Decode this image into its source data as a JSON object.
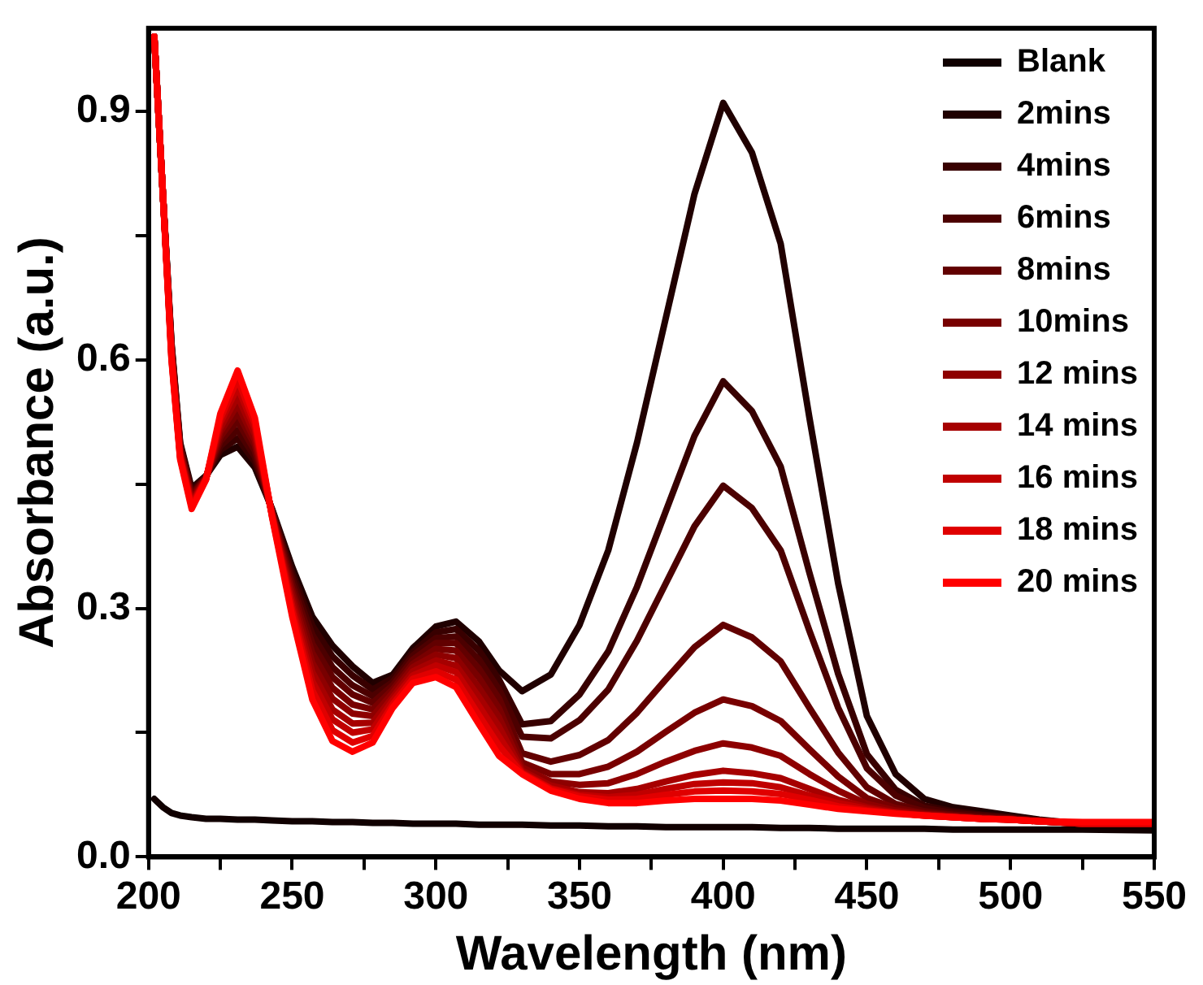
{
  "chart_data": {
    "type": "line",
    "xlabel": "Wavelength (nm)",
    "ylabel": "Absorbance (a.u.)",
    "x": [
      202,
      205,
      208,
      211,
      215,
      220,
      225,
      231,
      237,
      243,
      250,
      257,
      264,
      271,
      278,
      285,
      292,
      300,
      307,
      315,
      322,
      330,
      340,
      350,
      360,
      370,
      380,
      390,
      400,
      410,
      420,
      430,
      440,
      450,
      460,
      470,
      480,
      490,
      500,
      510,
      525,
      550
    ],
    "xlim": [
      200,
      550
    ],
    "xticks": [
      200,
      {
        "value": 225,
        "label": null
      },
      250,
      {
        "value": 275,
        "label": null
      },
      300,
      {
        "value": 325,
        "label": null
      },
      350,
      {
        "value": 375,
        "label": null
      },
      400,
      {
        "value": 425,
        "label": null
      },
      450,
      {
        "value": 475,
        "label": null
      },
      500,
      {
        "value": 525,
        "label": null
      },
      550
    ],
    "ylim": [
      0,
      1.0
    ],
    "yticks": [
      {
        "value": 0,
        "label": "0.0"
      },
      {
        "value": 0.15,
        "label": null
      },
      {
        "value": 0.3,
        "label": "0.3"
      },
      {
        "value": 0.45,
        "label": null
      },
      {
        "value": 0.6,
        "label": "0.6"
      },
      {
        "value": 0.75,
        "label": null
      },
      {
        "value": 0.9,
        "label": "0.9"
      }
    ],
    "grid": false,
    "legend": "top right",
    "marker": "none",
    "line_style": "solid",
    "series": [
      {
        "name": "Blank",
        "color": "#100000",
        "values": [
          0.07,
          0.06,
          0.053,
          0.05,
          0.048,
          0.046,
          0.046,
          0.045,
          0.045,
          0.044,
          0.043,
          0.043,
          0.042,
          0.042,
          0.041,
          0.041,
          0.04,
          0.04,
          0.04,
          0.039,
          0.039,
          0.039,
          0.038,
          0.038,
          0.037,
          0.037,
          0.036,
          0.036,
          0.036,
          0.036,
          0.035,
          0.035,
          0.034,
          0.034,
          0.034,
          0.034,
          0.033,
          0.033,
          0.033,
          0.033,
          0.033,
          0.032
        ]
      },
      {
        "name": "2mins",
        "color": "#200000",
        "values": [
          0.99,
          0.8,
          0.62,
          0.5,
          0.445,
          0.46,
          0.485,
          0.495,
          0.47,
          0.42,
          0.35,
          0.29,
          0.255,
          0.23,
          0.21,
          0.22,
          0.252,
          0.278,
          0.284,
          0.26,
          0.225,
          0.2,
          0.22,
          0.28,
          0.37,
          0.5,
          0.65,
          0.8,
          0.91,
          0.85,
          0.74,
          0.53,
          0.33,
          0.17,
          0.1,
          0.07,
          0.06,
          0.055,
          0.05,
          0.045,
          0.04,
          0.04
        ]
      },
      {
        "name": "4mins",
        "color": "#380000",
        "values": [
          0.99,
          0.8,
          0.618,
          0.498,
          0.442,
          0.459,
          0.491,
          0.505,
          0.477,
          0.419,
          0.343,
          0.279,
          0.242,
          0.219,
          0.202,
          0.216,
          0.247,
          0.271,
          0.275,
          0.249,
          0.214,
          0.16,
          0.164,
          0.196,
          0.248,
          0.326,
          0.417,
          0.508,
          0.574,
          0.538,
          0.471,
          0.343,
          0.221,
          0.124,
          0.081,
          0.062,
          0.055,
          0.051,
          0.048,
          0.044,
          0.04,
          0.04
        ]
      },
      {
        "name": "6mins",
        "color": "#4c0000",
        "values": [
          0.99,
          0.8,
          0.616,
          0.496,
          0.439,
          0.459,
          0.496,
          0.515,
          0.483,
          0.418,
          0.337,
          0.268,
          0.229,
          0.207,
          0.194,
          0.211,
          0.243,
          0.264,
          0.266,
          0.238,
          0.202,
          0.145,
          0.143,
          0.165,
          0.202,
          0.261,
          0.33,
          0.399,
          0.448,
          0.421,
          0.37,
          0.273,
          0.18,
          0.107,
          0.074,
          0.059,
          0.053,
          0.05,
          0.047,
          0.044,
          0.04,
          0.04
        ]
      },
      {
        "name": "8mins",
        "color": "#620000",
        "values": [
          0.99,
          0.8,
          0.613,
          0.493,
          0.437,
          0.458,
          0.502,
          0.526,
          0.49,
          0.417,
          0.33,
          0.257,
          0.217,
          0.196,
          0.186,
          0.207,
          0.238,
          0.258,
          0.258,
          0.227,
          0.191,
          0.125,
          0.115,
          0.123,
          0.141,
          0.174,
          0.214,
          0.253,
          0.28,
          0.265,
          0.236,
          0.18,
          0.126,
          0.084,
          0.064,
          0.055,
          0.051,
          0.048,
          0.046,
          0.044,
          0.04,
          0.04
        ]
      },
      {
        "name": "10mins",
        "color": "#780000",
        "values": [
          0.99,
          0.8,
          0.611,
          0.491,
          0.434,
          0.458,
          0.507,
          0.536,
          0.497,
          0.416,
          0.323,
          0.246,
          0.204,
          0.184,
          0.178,
          0.202,
          0.233,
          0.251,
          0.249,
          0.216,
          0.179,
          0.114,
          0.1,
          0.1,
          0.109,
          0.127,
          0.151,
          0.174,
          0.19,
          0.182,
          0.164,
          0.13,
          0.097,
          0.071,
          0.059,
          0.053,
          0.05,
          0.047,
          0.046,
          0.043,
          0.04,
          0.04
        ]
      },
      {
        "name": "12 mins",
        "color": "#8e0000",
        "values": [
          0.99,
          0.8,
          0.609,
          0.489,
          0.431,
          0.457,
          0.513,
          0.546,
          0.503,
          0.414,
          0.317,
          0.234,
          0.191,
          0.173,
          0.17,
          0.198,
          0.229,
          0.244,
          0.24,
          0.204,
          0.168,
          0.108,
          0.091,
          0.087,
          0.089,
          0.1,
          0.115,
          0.128,
          0.137,
          0.132,
          0.122,
          0.1,
          0.08,
          0.064,
          0.056,
          0.052,
          0.049,
          0.047,
          0.045,
          0.043,
          0.04,
          0.04
        ]
      },
      {
        "name": "14 mins",
        "color": "#a60000",
        "values": [
          0.99,
          0.8,
          0.607,
          0.487,
          0.428,
          0.457,
          0.518,
          0.556,
          0.51,
          0.413,
          0.31,
          0.223,
          0.178,
          0.161,
          0.162,
          0.193,
          0.224,
          0.237,
          0.231,
          0.193,
          0.157,
          0.104,
          0.086,
          0.078,
          0.077,
          0.082,
          0.091,
          0.099,
          0.104,
          0.101,
          0.095,
          0.082,
          0.069,
          0.06,
          0.054,
          0.051,
          0.048,
          0.046,
          0.045,
          0.043,
          0.04,
          0.04
        ]
      },
      {
        "name": "16 mins",
        "color": "#c00000",
        "values": [
          0.99,
          0.8,
          0.604,
          0.484,
          0.426,
          0.456,
          0.524,
          0.567,
          0.517,
          0.412,
          0.303,
          0.212,
          0.166,
          0.15,
          0.154,
          0.189,
          0.219,
          0.231,
          0.223,
          0.182,
          0.145,
          0.102,
          0.083,
          0.075,
          0.072,
          0.075,
          0.082,
          0.088,
          0.09,
          0.089,
          0.084,
          0.074,
          0.065,
          0.058,
          0.053,
          0.05,
          0.048,
          0.046,
          0.045,
          0.043,
          0.04,
          0.04
        ]
      },
      {
        "name": "18 mins",
        "color": "#e00000",
        "values": [
          0.99,
          0.8,
          0.602,
          0.482,
          0.423,
          0.456,
          0.529,
          0.577,
          0.523,
          0.411,
          0.297,
          0.201,
          0.153,
          0.138,
          0.146,
          0.184,
          0.215,
          0.224,
          0.214,
          0.171,
          0.134,
          0.101,
          0.082,
          0.073,
          0.069,
          0.07,
          0.075,
          0.079,
          0.08,
          0.079,
          0.076,
          0.069,
          0.061,
          0.056,
          0.053,
          0.05,
          0.048,
          0.046,
          0.045,
          0.043,
          0.04,
          0.04
        ]
      },
      {
        "name": "20 mins",
        "color": "#ff0000",
        "values": [
          0.99,
          0.8,
          0.6,
          0.48,
          0.42,
          0.455,
          0.535,
          0.587,
          0.53,
          0.41,
          0.29,
          0.19,
          0.14,
          0.127,
          0.138,
          0.18,
          0.21,
          0.217,
          0.205,
          0.16,
          0.122,
          0.1,
          0.08,
          0.07,
          0.065,
          0.065,
          0.068,
          0.07,
          0.07,
          0.07,
          0.068,
          0.063,
          0.058,
          0.055,
          0.052,
          0.05,
          0.048,
          0.046,
          0.045,
          0.043,
          0.042,
          0.042
        ]
      }
    ]
  }
}
